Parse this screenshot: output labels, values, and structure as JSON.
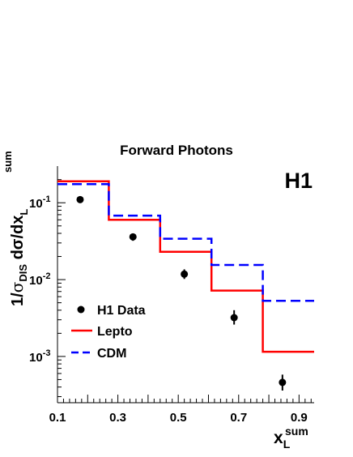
{
  "chart_data": {
    "type": "step",
    "title": "Forward Photons",
    "experiment_label": "H1",
    "xlabel": {
      "main": "x",
      "sup": "sum",
      "sub": "L"
    },
    "ylabel": {
      "lead": "1/",
      "sigma": "σ",
      "sigma_sub": "DIS",
      "mid": " dσ/dx",
      "sup": "sum",
      "sub": "L"
    },
    "xlim": [
      0.1,
      0.95
    ],
    "ylim": [
      0.00025,
      0.3
    ],
    "yscale": "log",
    "x_ticks": [
      "0.1",
      "0.3",
      "0.5",
      "0.7",
      "0.9"
    ],
    "y_ticks": [
      {
        "base": "10",
        "exp": "-1"
      },
      {
        "base": "10",
        "exp": "-2"
      },
      {
        "base": "10",
        "exp": "-3"
      }
    ],
    "bin_edges": [
      0.1,
      0.27,
      0.44,
      0.61,
      0.78,
      0.95
    ],
    "series": [
      {
        "name": "H1 Data",
        "kind": "points",
        "color": "#000000",
        "x": [
          0.175,
          0.35,
          0.52,
          0.685,
          0.845
        ],
        "y": [
          0.11,
          0.036,
          0.0118,
          0.0032,
          0.00046
        ],
        "y_err_low": [
          0.1,
          0.032,
          0.0102,
          0.0026,
          0.00036
        ],
        "y_err_high": [
          0.12,
          0.04,
          0.0136,
          0.004,
          0.00058
        ]
      },
      {
        "name": "Lepto",
        "kind": "histogram",
        "color": "#ff0000",
        "values": [
          0.19,
          0.06,
          0.023,
          0.0072,
          0.00115
        ]
      },
      {
        "name": "CDM",
        "kind": "histogram-dashed",
        "color": "#0000ff",
        "values": [
          0.175,
          0.068,
          0.034,
          0.0155,
          0.0053
        ]
      }
    ],
    "legend": "bottom-left",
    "grid": false
  }
}
